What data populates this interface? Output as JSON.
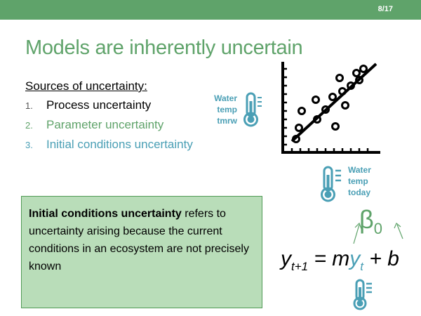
{
  "slide": {
    "page_number": "8/17",
    "title": "Models are inherently uncertain",
    "sources_heading": "Sources of uncertainty:",
    "list": [
      {
        "num": "1.",
        "text": "Process uncertainty"
      },
      {
        "num": "2.",
        "text": "Parameter uncertainty"
      },
      {
        "num": "3.",
        "text": "Initial conditions uncertainty"
      }
    ]
  },
  "labels": {
    "water_temp_tmrw": [
      "Water",
      "temp",
      "tmrw"
    ],
    "water_temp_today": [
      "Water",
      "temp",
      "today"
    ]
  },
  "definition": {
    "bold": "Initial conditions uncertainty",
    "rest": " refers to uncertainty arising because the current conditions in an ecosystem are not precisely known"
  },
  "equation": {
    "beta": "β",
    "beta_sub": "0",
    "y": "y",
    "sub_t1": "t+1",
    "eq": " = m",
    "y2": "y",
    "sub_t": "t",
    "rest": " + b"
  },
  "colors": {
    "green": "#5fa36a",
    "blue": "#4a9fb5",
    "box_fill": "#b9ddb9",
    "box_border": "#4f9a54"
  },
  "icons": [
    "thermometer-icon",
    "scatter-plot-icon"
  ]
}
